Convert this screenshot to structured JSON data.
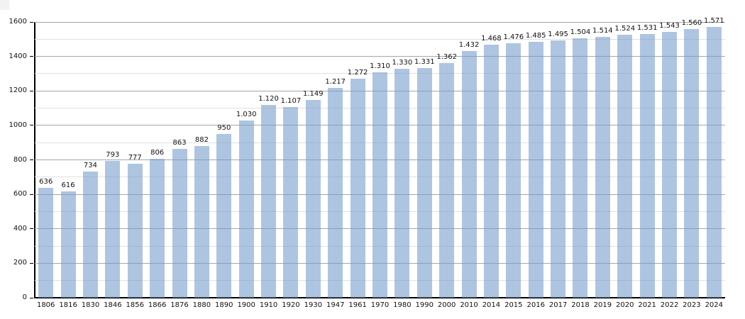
{
  "page": {
    "background": "#ffffff",
    "corner_artifact_color": "#f2f2f2"
  },
  "chart_data": {
    "type": "bar",
    "title": "",
    "xlabel": "",
    "ylabel": "",
    "categories": [
      "1806",
      "1816",
      "1830",
      "1846",
      "1856",
      "1866",
      "1876",
      "1880",
      "1890",
      "1900",
      "1910",
      "1920",
      "1930",
      "1947",
      "1961",
      "1970",
      "1980",
      "1990",
      "2000",
      "2010",
      "2014",
      "2015",
      "2016",
      "2017",
      "2018",
      "2019",
      "2020",
      "2021",
      "2022",
      "2023",
      "2024"
    ],
    "values": [
      636,
      616,
      734,
      793,
      777,
      806,
      863,
      882,
      950,
      1030,
      1120,
      1107,
      1149,
      1217,
      1272,
      1310,
      1330,
      1331,
      1362,
      1432,
      1468,
      1476,
      1485,
      1495,
      1504,
      1514,
      1524,
      1531,
      1543,
      1560,
      1571
    ],
    "value_labels": [
      "636",
      "616",
      "734",
      "793",
      "777",
      "806",
      "863",
      "882",
      "950",
      "1.030",
      "1.120",
      "1.107",
      "1.149",
      "1.217",
      "1.272",
      "1.310",
      "1.330",
      "1.331",
      "1.362",
      "1.432",
      "1.468",
      "1.476",
      "1.485",
      "1.495",
      "1.504",
      "1.514",
      "1.524",
      "1.531",
      "1.543",
      "1.560",
      "1.571"
    ],
    "y_ticks": [
      0,
      200,
      400,
      600,
      800,
      1000,
      1200,
      1400,
      1600
    ],
    "ylim": [
      0,
      1600
    ],
    "minor_grid_step": 100,
    "major_grid_step": 200,
    "grid": "horizontal",
    "legend": "none",
    "bar_labels_position": "above",
    "colors": {
      "bar": "#b1c8e3",
      "major_grid": "#a6a6a6",
      "minor_grid": "#e0e0e0",
      "axis": "#000000",
      "text": "#111111"
    }
  }
}
